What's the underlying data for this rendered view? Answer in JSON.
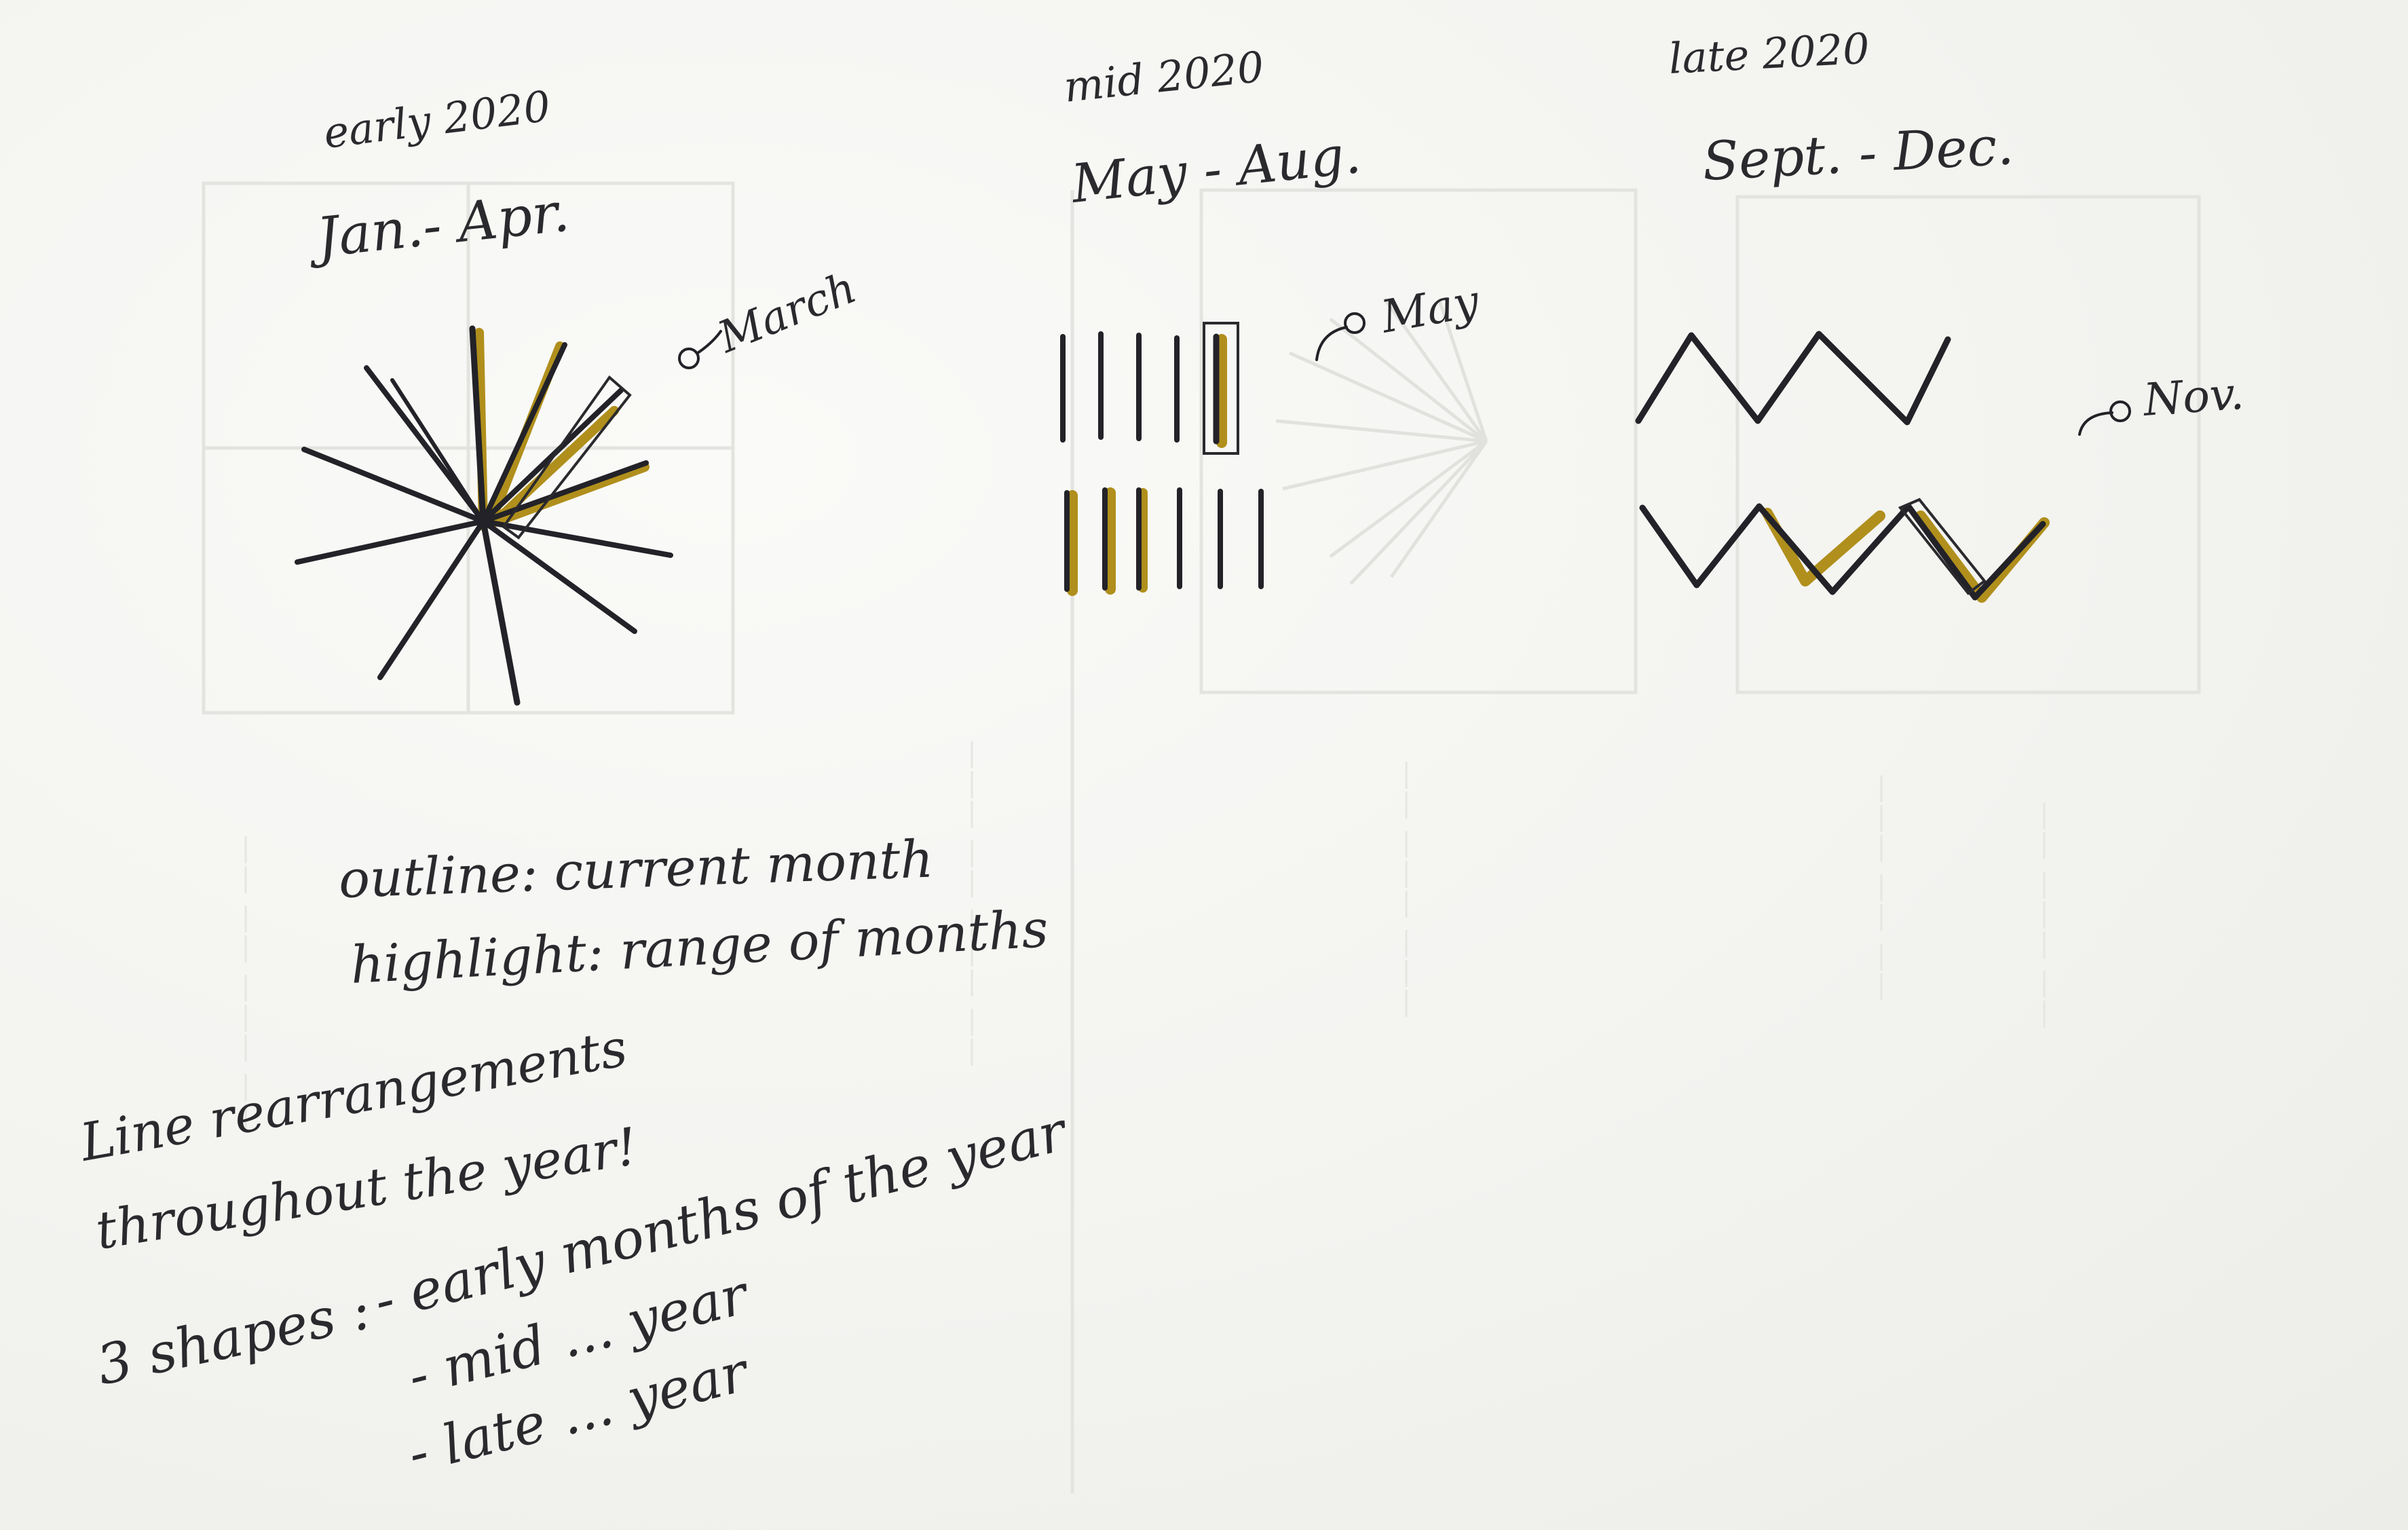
{
  "sketches": [
    {
      "period": "early 2020",
      "range": "Jan.- Apr.",
      "marker": "March",
      "shape": "radial-burst",
      "stroke_count": 12
    },
    {
      "period": "mid 2020",
      "range": "May - Aug.",
      "marker": "May",
      "shape": "vertical-lines",
      "stroke_count": 12
    },
    {
      "period": "late 2020",
      "range": "Sept. - Dec.",
      "marker": "Nov.",
      "shape": "zigzag",
      "stroke_count": 12
    }
  ],
  "legend": {
    "outline": "outline: current month",
    "highlight": "highlight: range of months"
  },
  "notes": {
    "line1": "Line rearrangements",
    "line2": "throughout the year!",
    "shapes_lead": "3 shapes :",
    "item1": "- early months of the year",
    "item2": "- mid  ...  year",
    "item3": "- late  ...  year"
  },
  "colors": {
    "ink": "#222228",
    "highlight": "#b08f1c",
    "paper": "#f6f6f4"
  }
}
